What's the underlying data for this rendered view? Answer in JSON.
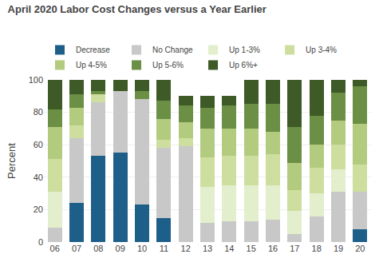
{
  "chart_data": {
    "type": "bar",
    "stacked": true,
    "title": "April 2020 Labor Cost Changes versus a Year Earlier",
    "ylabel": "Percent",
    "categories": [
      "06",
      "07",
      "08",
      "09",
      "10",
      "11",
      "12",
      "13",
      "14",
      "15",
      "16",
      "17",
      "18",
      "19",
      "20"
    ],
    "series": [
      {
        "name": "Decrease",
        "color": "#1e5f8a",
        "values": [
          0,
          24,
          53,
          55,
          23,
          15,
          0,
          0,
          0,
          0,
          0,
          0,
          0,
          0,
          8
        ]
      },
      {
        "name": "No Change",
        "color": "#c8c8c8",
        "values": [
          9,
          40,
          33,
          38,
          65,
          43,
          59,
          12,
          13,
          13,
          14,
          5,
          16,
          31,
          23
        ]
      },
      {
        "name": "Up 1-3%",
        "color": "#e2eecc",
        "values": [
          22,
          0,
          0,
          0,
          0,
          0,
          0,
          22,
          22,
          22,
          21,
          14,
          14,
          14,
          0
        ]
      },
      {
        "name": "Up 3-4%",
        "color": "#cede9e",
        "values": [
          20,
          8,
          5,
          0,
          0,
          5,
          5,
          18,
          18,
          18,
          19,
          13,
          16,
          15,
          17
        ]
      },
      {
        "name": "Up 4-5%",
        "color": "#b3cb7f",
        "values": [
          20,
          11,
          0,
          0,
          0,
          13,
          10,
          18,
          17,
          17,
          14,
          17,
          14,
          15,
          25
        ]
      },
      {
        "name": "Up 5-6%",
        "color": "#6b8f45",
        "values": [
          11,
          8,
          2,
          0,
          5,
          11,
          10,
          13,
          14,
          15,
          17,
          22,
          18,
          17,
          23
        ]
      },
      {
        "name": "Up 6%+",
        "color": "#3d5a27",
        "values": [
          18,
          9,
          7,
          7,
          7,
          13,
          6,
          7,
          6,
          15,
          15,
          29,
          22,
          8,
          4
        ]
      }
    ],
    "ylim": [
      0,
      100
    ],
    "yticks": [
      0,
      20,
      40,
      60,
      80,
      100
    ],
    "grid": true,
    "legend": "top"
  }
}
